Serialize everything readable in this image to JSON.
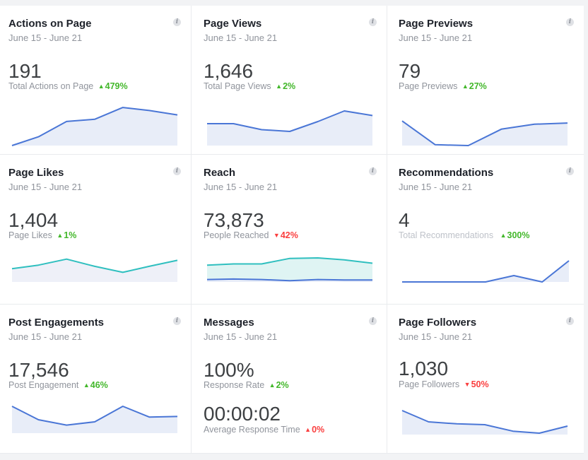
{
  "colors": {
    "line_blue": "#4a76d6",
    "line_teal": "#2fbfbf",
    "fill_blue": "#e8edf8",
    "fill_teal": "#dff4f3",
    "up": "#42b72a",
    "down": "#fa3e3e"
  },
  "cards": [
    {
      "title": "Actions on Page",
      "date": "June 15 - June 21",
      "value": "191",
      "label": "Total Actions on Page",
      "change": "479%",
      "direction": "up",
      "info_icon": "info-icon",
      "spark": [
        [
          0.0,
          0.0
        ],
        [
          0.16,
          0.2
        ],
        [
          0.33,
          0.55
        ],
        [
          0.5,
          0.6
        ],
        [
          0.67,
          0.87
        ],
        [
          0.83,
          0.8
        ],
        [
          1.0,
          0.7
        ]
      ]
    },
    {
      "title": "Page Views",
      "date": "June 15 - June 21",
      "value": "1,646",
      "label": "Total Page Views",
      "change": "2%",
      "direction": "up",
      "info_icon": "info-icon",
      "spark": [
        [
          0.0,
          0.62
        ],
        [
          0.16,
          0.62
        ],
        [
          0.33,
          0.45
        ],
        [
          0.5,
          0.4
        ],
        [
          0.67,
          0.68
        ],
        [
          0.83,
          0.98
        ],
        [
          1.0,
          0.85
        ]
      ]
    },
    {
      "title": "Page Previews",
      "date": "June 15 - June 21",
      "value": "79",
      "label": "Page Previews",
      "change": "27%",
      "direction": "up",
      "info_icon": "info-icon",
      "spark": [
        [
          0.0,
          0.6
        ],
        [
          0.2,
          0.02
        ],
        [
          0.4,
          0.0
        ],
        [
          0.6,
          0.4
        ],
        [
          0.8,
          0.52
        ],
        [
          1.0,
          0.55
        ]
      ]
    },
    {
      "title": "Page Likes",
      "date": "June 15 - June 21",
      "value": "1,404",
      "label": "Page Likes",
      "change": "1%",
      "direction": "up",
      "info_icon": "info-icon",
      "spark": [
        [
          0.0,
          0.55
        ],
        [
          0.16,
          0.7
        ],
        [
          0.33,
          0.95
        ],
        [
          0.5,
          0.65
        ],
        [
          0.67,
          0.4
        ],
        [
          0.83,
          0.65
        ],
        [
          1.0,
          0.9
        ]
      ]
    },
    {
      "title": "Reach",
      "date": "June 15 - June 21",
      "value": "73,873",
      "label": "People Reached",
      "change": "42%",
      "direction": "down",
      "info_icon": "info-icon",
      "spark_top": [
        [
          0.0,
          0.7
        ],
        [
          0.16,
          0.75
        ],
        [
          0.33,
          0.75
        ],
        [
          0.5,
          0.98
        ],
        [
          0.67,
          1.0
        ],
        [
          0.83,
          0.92
        ],
        [
          1.0,
          0.78
        ]
      ],
      "spark_bottom": [
        [
          0.0,
          0.1
        ],
        [
          0.16,
          0.12
        ],
        [
          0.33,
          0.1
        ],
        [
          0.5,
          0.05
        ],
        [
          0.67,
          0.1
        ],
        [
          0.83,
          0.08
        ],
        [
          1.0,
          0.08
        ]
      ]
    },
    {
      "title": "Recommendations",
      "date": "June 15 - June 21",
      "value": "4",
      "label": "Total Recommendations",
      "change": "300%",
      "direction": "up",
      "info_icon": "info-icon",
      "spark": [
        [
          0.0,
          0.0
        ],
        [
          0.2,
          0.0
        ],
        [
          0.4,
          0.0
        ],
        [
          0.5,
          0.0
        ],
        [
          0.67,
          0.3
        ],
        [
          0.84,
          0.0
        ],
        [
          1.0,
          1.0
        ]
      ]
    },
    {
      "title": "Post Engagements",
      "date": "June 15 - June 21",
      "value": "17,546",
      "label": "Post Engagement",
      "change": "46%",
      "direction": "up",
      "info_icon": "info-icon",
      "spark": [
        [
          0.0,
          1.0
        ],
        [
          0.16,
          0.5
        ],
        [
          0.33,
          0.3
        ],
        [
          0.5,
          0.42
        ],
        [
          0.67,
          1.0
        ],
        [
          0.83,
          0.6
        ],
        [
          1.0,
          0.62
        ]
      ]
    },
    {
      "title": "Messages",
      "date": "June 15 - June 21",
      "value": "100%",
      "label": "Response Rate",
      "change": "2%",
      "direction": "up",
      "value2": "00:00:02",
      "label2": "Average Response Time",
      "change2": "0%",
      "direction2": "up",
      "info_icon": "info-icon"
    },
    {
      "title": "Page Followers",
      "date": "June 15 - June 21",
      "value": "1,030",
      "label": "Page Followers",
      "change": "50%",
      "direction": "down",
      "info_icon": "info-icon",
      "spark": [
        [
          0.0,
          0.85
        ],
        [
          0.16,
          0.45
        ],
        [
          0.33,
          0.38
        ],
        [
          0.5,
          0.35
        ],
        [
          0.67,
          0.12
        ],
        [
          0.83,
          0.05
        ],
        [
          1.0,
          0.3
        ]
      ]
    }
  ]
}
